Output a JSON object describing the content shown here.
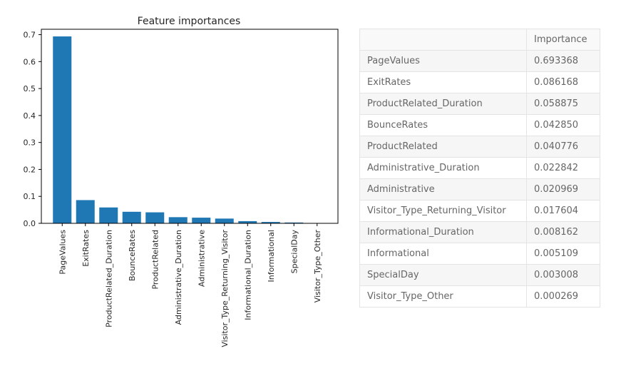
{
  "chart_data": {
    "type": "bar",
    "title": "Feature importances",
    "categories": [
      "PageValues",
      "ExitRates",
      "ProductRelated_Duration",
      "BounceRates",
      "ProductRelated",
      "Administrative_Duration",
      "Administrative",
      "Visitor_Type_Returning_Visitor",
      "Informational_Duration",
      "Informational",
      "SpecialDay",
      "Visitor_Type_Other"
    ],
    "values": [
      0.693368,
      0.086168,
      0.058875,
      0.04285,
      0.040776,
      0.022842,
      0.020969,
      0.017604,
      0.008162,
      0.005109,
      0.003008,
      0.000269
    ],
    "ylim": [
      0,
      0.72
    ],
    "yticks": [
      "0.0",
      "0.1",
      "0.2",
      "0.3",
      "0.4",
      "0.5",
      "0.6",
      "0.7"
    ],
    "xlabel": "",
    "ylabel": "",
    "grid": false,
    "color": "#1f77b4"
  },
  "table": {
    "header": [
      "",
      "Importance"
    ],
    "rows": [
      {
        "name": "PageValues",
        "value": "0.693368"
      },
      {
        "name": "ExitRates",
        "value": "0.086168"
      },
      {
        "name": "ProductRelated_Duration",
        "value": "0.058875"
      },
      {
        "name": "BounceRates",
        "value": "0.042850"
      },
      {
        "name": "ProductRelated",
        "value": "0.040776"
      },
      {
        "name": "Administrative_Duration",
        "value": "0.022842"
      },
      {
        "name": "Administrative",
        "value": "0.020969"
      },
      {
        "name": "Visitor_Type_Returning_Visitor",
        "value": "0.017604"
      },
      {
        "name": "Informational_Duration",
        "value": "0.008162"
      },
      {
        "name": "Informational",
        "value": "0.005109"
      },
      {
        "name": "SpecialDay",
        "value": "0.003008"
      },
      {
        "name": "Visitor_Type_Other",
        "value": "0.000269"
      }
    ]
  }
}
